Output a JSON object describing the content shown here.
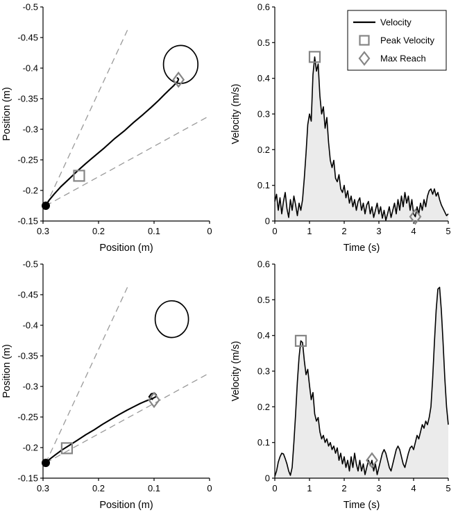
{
  "figure": {
    "background": "#ffffff",
    "rows": 2,
    "cols": 2
  },
  "colors": {
    "trace": "#000000",
    "marker": "#858585",
    "area_fill": "#ebebeb",
    "guide": "#999999",
    "axis": "#000000",
    "legend_border": "#000000",
    "legend_background": "#ffffff"
  },
  "chart_data": [
    {
      "id": "trajectory-trial-1",
      "type": "line",
      "subtype": "trajectory",
      "title": "",
      "xlabel": "Position (m)",
      "ylabel": "Position (m)",
      "xlim": [
        0,
        0.3
      ],
      "x_reversed": true,
      "ylim": [
        -0.5,
        -0.15
      ],
      "y_reversed": true,
      "grid": false,
      "xticks": [
        0.3,
        0.2,
        0.1,
        0
      ],
      "xtick_labels": [
        "0.3",
        "0.2",
        "0.1",
        "0"
      ],
      "yticks": [
        -0.5,
        -0.45,
        -0.4,
        -0.35,
        -0.3,
        -0.25,
        -0.2,
        -0.15
      ],
      "ytick_labels": [
        "-0.5",
        "-0.45",
        "-0.4",
        "-0.35",
        "-0.3",
        "-0.25",
        "-0.2",
        "-0.15"
      ],
      "dashed_guides": [
        {
          "x": [
            0.295,
            0.148
          ],
          "y": [
            -0.175,
            -0.462
          ]
        },
        {
          "x": [
            0.295,
            0.0
          ],
          "y": [
            -0.175,
            -0.322
          ]
        }
      ],
      "target_circle": {
        "cx": 0.052,
        "cy": -0.406,
        "r": 0.031
      },
      "start_point": {
        "x": 0.295,
        "y": -0.175
      },
      "trajectory": {
        "x": [
          0.295,
          0.289,
          0.28,
          0.268,
          0.254,
          0.239,
          0.223,
          0.206,
          0.189,
          0.172,
          0.154,
          0.137,
          0.12,
          0.105,
          0.092,
          0.081,
          0.072,
          0.065,
          0.06,
          0.057,
          0.056,
          0.058
        ],
        "y": [
          -0.175,
          -0.184,
          -0.194,
          -0.206,
          -0.218,
          -0.231,
          -0.244,
          -0.257,
          -0.27,
          -0.284,
          -0.297,
          -0.311,
          -0.324,
          -0.336,
          -0.347,
          -0.357,
          -0.365,
          -0.371,
          -0.376,
          -0.379,
          -0.382,
          -0.384
        ]
      },
      "peak_velocity_marker": {
        "x": 0.235,
        "y": -0.224
      },
      "max_reach_marker": {
        "x": 0.056,
        "y": -0.381
      }
    },
    {
      "id": "velocity-trial-1",
      "type": "area",
      "subtype": "velocity",
      "title": "",
      "xlabel": "Time (s)",
      "ylabel": "Velocity (m/s)",
      "xlim": [
        0,
        5
      ],
      "x_reversed": false,
      "ylim": [
        0,
        0.6
      ],
      "y_reversed": false,
      "grid": false,
      "xticks": [
        0,
        1,
        2,
        3,
        4,
        5
      ],
      "xtick_labels": [
        "0",
        "1",
        "2",
        "3",
        "4",
        "5"
      ],
      "yticks": [
        0,
        0.1,
        0.2,
        0.3,
        0.4,
        0.5,
        0.6
      ],
      "ytick_labels": [
        "0",
        "0.1",
        "0.2",
        "0.3",
        "0.4",
        "0.5",
        "0.6"
      ],
      "fill_under": true,
      "series": [
        {
          "name": "Velocity",
          "t0": 0,
          "dt": 0.05,
          "values": [
            0.055,
            0.075,
            0.03,
            0.065,
            0.02,
            0.055,
            0.08,
            0.035,
            0.01,
            0.06,
            0.03,
            0.07,
            0.045,
            0.015,
            0.05,
            0.03,
            0.06,
            0.12,
            0.19,
            0.27,
            0.3,
            0.28,
            0.41,
            0.46,
            0.42,
            0.44,
            0.35,
            0.3,
            0.32,
            0.26,
            0.29,
            0.22,
            0.17,
            0.15,
            0.17,
            0.12,
            0.11,
            0.13,
            0.09,
            0.08,
            0.1,
            0.065,
            0.085,
            0.05,
            0.07,
            0.04,
            0.06,
            0.03,
            0.055,
            0.065,
            0.03,
            0.05,
            0.02,
            0.045,
            0.055,
            0.02,
            0.04,
            0.01,
            0.03,
            0.05,
            0.02,
            0.04,
            0.008,
            0.03,
            0.002,
            0.02,
            0.04,
            0.01,
            0.03,
            0.05,
            0.02,
            0.06,
            0.03,
            0.07,
            0.04,
            0.08,
            0.05,
            0.07,
            0.03,
            0.06,
            0.02,
            0.012,
            0.04,
            0.02,
            0.05,
            0.03,
            0.06,
            0.04,
            0.07,
            0.085,
            0.09,
            0.075,
            0.09,
            0.07,
            0.08,
            0.06,
            0.045,
            0.035,
            0.025,
            0.015,
            0.02
          ]
        }
      ],
      "peak_velocity_marker": {
        "x": 1.15,
        "y": 0.46
      },
      "max_reach_marker": {
        "x": 4.05,
        "y": 0.012
      },
      "legend": {
        "visible": true,
        "position": "northeast",
        "entries": [
          {
            "label": "Velocity",
            "sample": "line"
          },
          {
            "label": "Peak Velocity",
            "sample": "square"
          },
          {
            "label": "Max Reach",
            "sample": "diamond"
          }
        ]
      }
    },
    {
      "id": "trajectory-trial-2",
      "type": "line",
      "subtype": "trajectory",
      "title": "",
      "xlabel": "Position (m)",
      "ylabel": "Position (m)",
      "xlim": [
        0,
        0.3
      ],
      "x_reversed": true,
      "ylim": [
        -0.5,
        -0.15
      ],
      "y_reversed": true,
      "grid": false,
      "xticks": [
        0.3,
        0.2,
        0.1,
        0
      ],
      "xtick_labels": [
        "0.3",
        "0.2",
        "0.1",
        "0"
      ],
      "yticks": [
        -0.5,
        -0.45,
        -0.4,
        -0.35,
        -0.3,
        -0.25,
        -0.2,
        -0.15
      ],
      "ytick_labels": [
        "-0.5",
        "-0.45",
        "-0.4",
        "-0.35",
        "-0.3",
        "-0.25",
        "-0.2",
        "-0.15"
      ],
      "dashed_guides": [
        {
          "x": [
            0.295,
            0.148
          ],
          "y": [
            -0.175,
            -0.462
          ]
        },
        {
          "x": [
            0.295,
            0.0
          ],
          "y": [
            -0.175,
            -0.322
          ]
        }
      ],
      "target_circle": {
        "cx": 0.068,
        "cy": -0.41,
        "r": 0.03
      },
      "start_point": {
        "x": 0.295,
        "y": -0.175
      },
      "trajectory": {
        "x": [
          0.295,
          0.288,
          0.278,
          0.266,
          0.252,
          0.238,
          0.223,
          0.208,
          0.193,
          0.178,
          0.163,
          0.149,
          0.136,
          0.125,
          0.115,
          0.107,
          0.101,
          0.097,
          0.096,
          0.099,
          0.105,
          0.109,
          0.103
        ],
        "y": [
          -0.175,
          -0.181,
          -0.188,
          -0.196,
          -0.204,
          -0.212,
          -0.221,
          -0.229,
          -0.238,
          -0.246,
          -0.254,
          -0.261,
          -0.267,
          -0.272,
          -0.276,
          -0.279,
          -0.281,
          -0.283,
          -0.286,
          -0.289,
          -0.288,
          -0.283,
          -0.279
        ]
      },
      "peak_velocity_marker": {
        "x": 0.257,
        "y": -0.199
      },
      "max_reach_marker": {
        "x": 0.1,
        "y": -0.278
      }
    },
    {
      "id": "velocity-trial-2",
      "type": "area",
      "subtype": "velocity",
      "title": "",
      "xlabel": "Time (s)",
      "ylabel": "Velocity (m/s)",
      "xlim": [
        0,
        5
      ],
      "x_reversed": false,
      "ylim": [
        0,
        0.6
      ],
      "y_reversed": false,
      "grid": false,
      "xticks": [
        0,
        1,
        2,
        3,
        4,
        5
      ],
      "xtick_labels": [
        "0",
        "1",
        "2",
        "3",
        "4",
        "5"
      ],
      "yticks": [
        0,
        0.1,
        0.2,
        0.3,
        0.4,
        0.5,
        0.6
      ],
      "ytick_labels": [
        "0",
        "0.1",
        "0.2",
        "0.3",
        "0.4",
        "0.5",
        "0.6"
      ],
      "fill_under": true,
      "series": [
        {
          "name": "Velocity",
          "t0": 0,
          "dt": 0.05,
          "values": [
            0.005,
            0.02,
            0.045,
            0.06,
            0.07,
            0.068,
            0.055,
            0.04,
            0.02,
            0.008,
            0.03,
            0.1,
            0.18,
            0.27,
            0.34,
            0.385,
            0.38,
            0.33,
            0.29,
            0.305,
            0.26,
            0.22,
            0.24,
            0.18,
            0.16,
            0.17,
            0.13,
            0.11,
            0.12,
            0.1,
            0.11,
            0.09,
            0.1,
            0.08,
            0.09,
            0.07,
            0.085,
            0.05,
            0.07,
            0.04,
            0.06,
            0.03,
            0.05,
            0.02,
            0.06,
            0.03,
            0.07,
            0.04,
            0.02,
            0.05,
            0.02,
            0.04,
            0.01,
            0.03,
            0.05,
            0.035,
            0.05,
            0.02,
            0.04,
            0.01,
            0.03,
            0.05,
            0.07,
            0.08,
            0.07,
            0.05,
            0.03,
            0.02,
            0.04,
            0.06,
            0.08,
            0.09,
            0.08,
            0.06,
            0.04,
            0.03,
            0.05,
            0.07,
            0.085,
            0.09,
            0.08,
            0.1,
            0.12,
            0.11,
            0.13,
            0.15,
            0.14,
            0.16,
            0.15,
            0.17,
            0.2,
            0.28,
            0.38,
            0.47,
            0.53,
            0.535,
            0.47,
            0.38,
            0.28,
            0.2,
            0.15
          ]
        }
      ],
      "peak_velocity_marker": {
        "x": 0.75,
        "y": 0.385
      },
      "max_reach_marker": {
        "x": 2.8,
        "y": 0.05
      },
      "legend": {
        "visible": false,
        "entries": []
      }
    }
  ]
}
